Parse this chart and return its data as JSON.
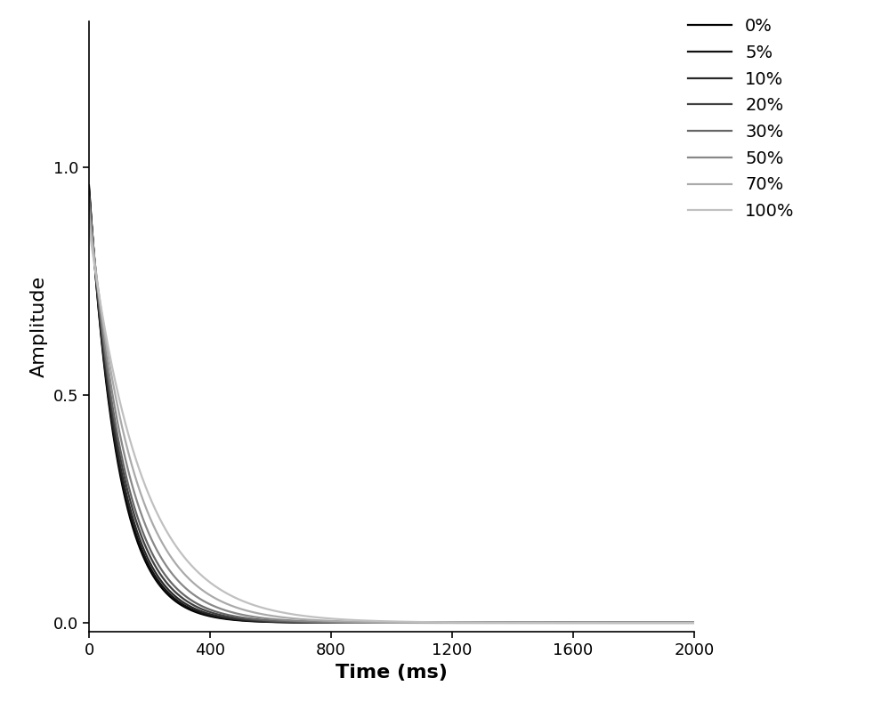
{
  "series": [
    {
      "label": "0%",
      "color": "#000000",
      "A": 0.96,
      "T2": 95
    },
    {
      "label": "5%",
      "color": "#111111",
      "A": 0.955,
      "T2": 98
    },
    {
      "label": "10%",
      "color": "#282828",
      "A": 0.95,
      "T2": 102
    },
    {
      "label": "20%",
      "color": "#404040",
      "A": 0.945,
      "T2": 108
    },
    {
      "label": "30%",
      "color": "#666666",
      "A": 0.935,
      "T2": 115
    },
    {
      "label": "50%",
      "color": "#888888",
      "A": 0.92,
      "T2": 128
    },
    {
      "label": "70%",
      "color": "#aaaaaa",
      "A": 0.9,
      "T2": 148
    },
    {
      "label": "100%",
      "color": "#c0c0c0",
      "A": 0.87,
      "T2": 175
    }
  ],
  "xmin": 0,
  "xmax": 2000,
  "ymin": -0.02,
  "ymax": 1.32,
  "xlabel": "Time (ms)",
  "ylabel": "Amplitude",
  "xticks": [
    0,
    400,
    800,
    1200,
    1600,
    2000
  ],
  "yticks": [
    0.0,
    0.5,
    1.0
  ],
  "linewidth": 1.6,
  "legend_fontsize": 14,
  "axis_label_fontsize": 16,
  "tick_fontsize": 13,
  "background_color": "#ffffff"
}
